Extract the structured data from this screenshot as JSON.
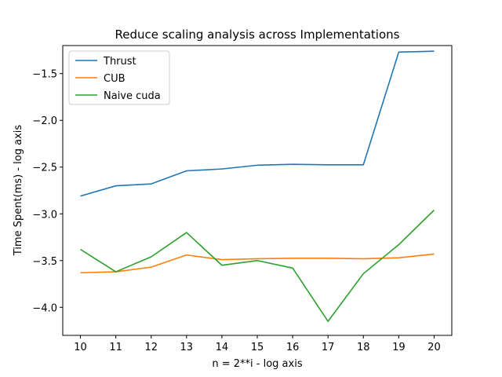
{
  "chart_data": {
    "type": "line",
    "title": "Reduce scaling analysis across Implementations",
    "xlabel": "n = 2**i - log axis",
    "ylabel": "Time Spent(ms) - log axis",
    "x": [
      10,
      11,
      12,
      13,
      14,
      15,
      16,
      17,
      18,
      19,
      20
    ],
    "xlim": [
      9.5,
      20.5
    ],
    "ylim": [
      -4.3,
      -1.2
    ],
    "xticks": [
      10,
      11,
      12,
      13,
      14,
      15,
      16,
      17,
      18,
      19,
      20
    ],
    "yticks": [
      -4.0,
      -3.5,
      -3.0,
      -2.5,
      -2.0,
      -1.5
    ],
    "ytick_labels": [
      "−4.0",
      "−3.5",
      "−3.0",
      "−2.5",
      "−2.0",
      "−1.5"
    ],
    "grid": false,
    "legend_position": "upper-left",
    "series": [
      {
        "name": "Thrust",
        "color": "#1f77b4",
        "values": [
          -2.81,
          -2.7,
          -2.68,
          -2.54,
          -2.52,
          -2.48,
          -2.47,
          -2.475,
          -2.475,
          -1.27,
          -1.26
        ]
      },
      {
        "name": "CUB",
        "color": "#ff7f0e",
        "values": [
          -3.63,
          -3.62,
          -3.57,
          -3.44,
          -3.49,
          -3.48,
          -3.475,
          -3.475,
          -3.48,
          -3.47,
          -3.43
        ]
      },
      {
        "name": "Naive cuda",
        "color": "#2ca02c",
        "values": [
          -3.38,
          -3.62,
          -3.46,
          -3.2,
          -3.55,
          -3.5,
          -3.58,
          -4.15,
          -3.64,
          -3.33,
          -2.96
        ]
      }
    ]
  }
}
